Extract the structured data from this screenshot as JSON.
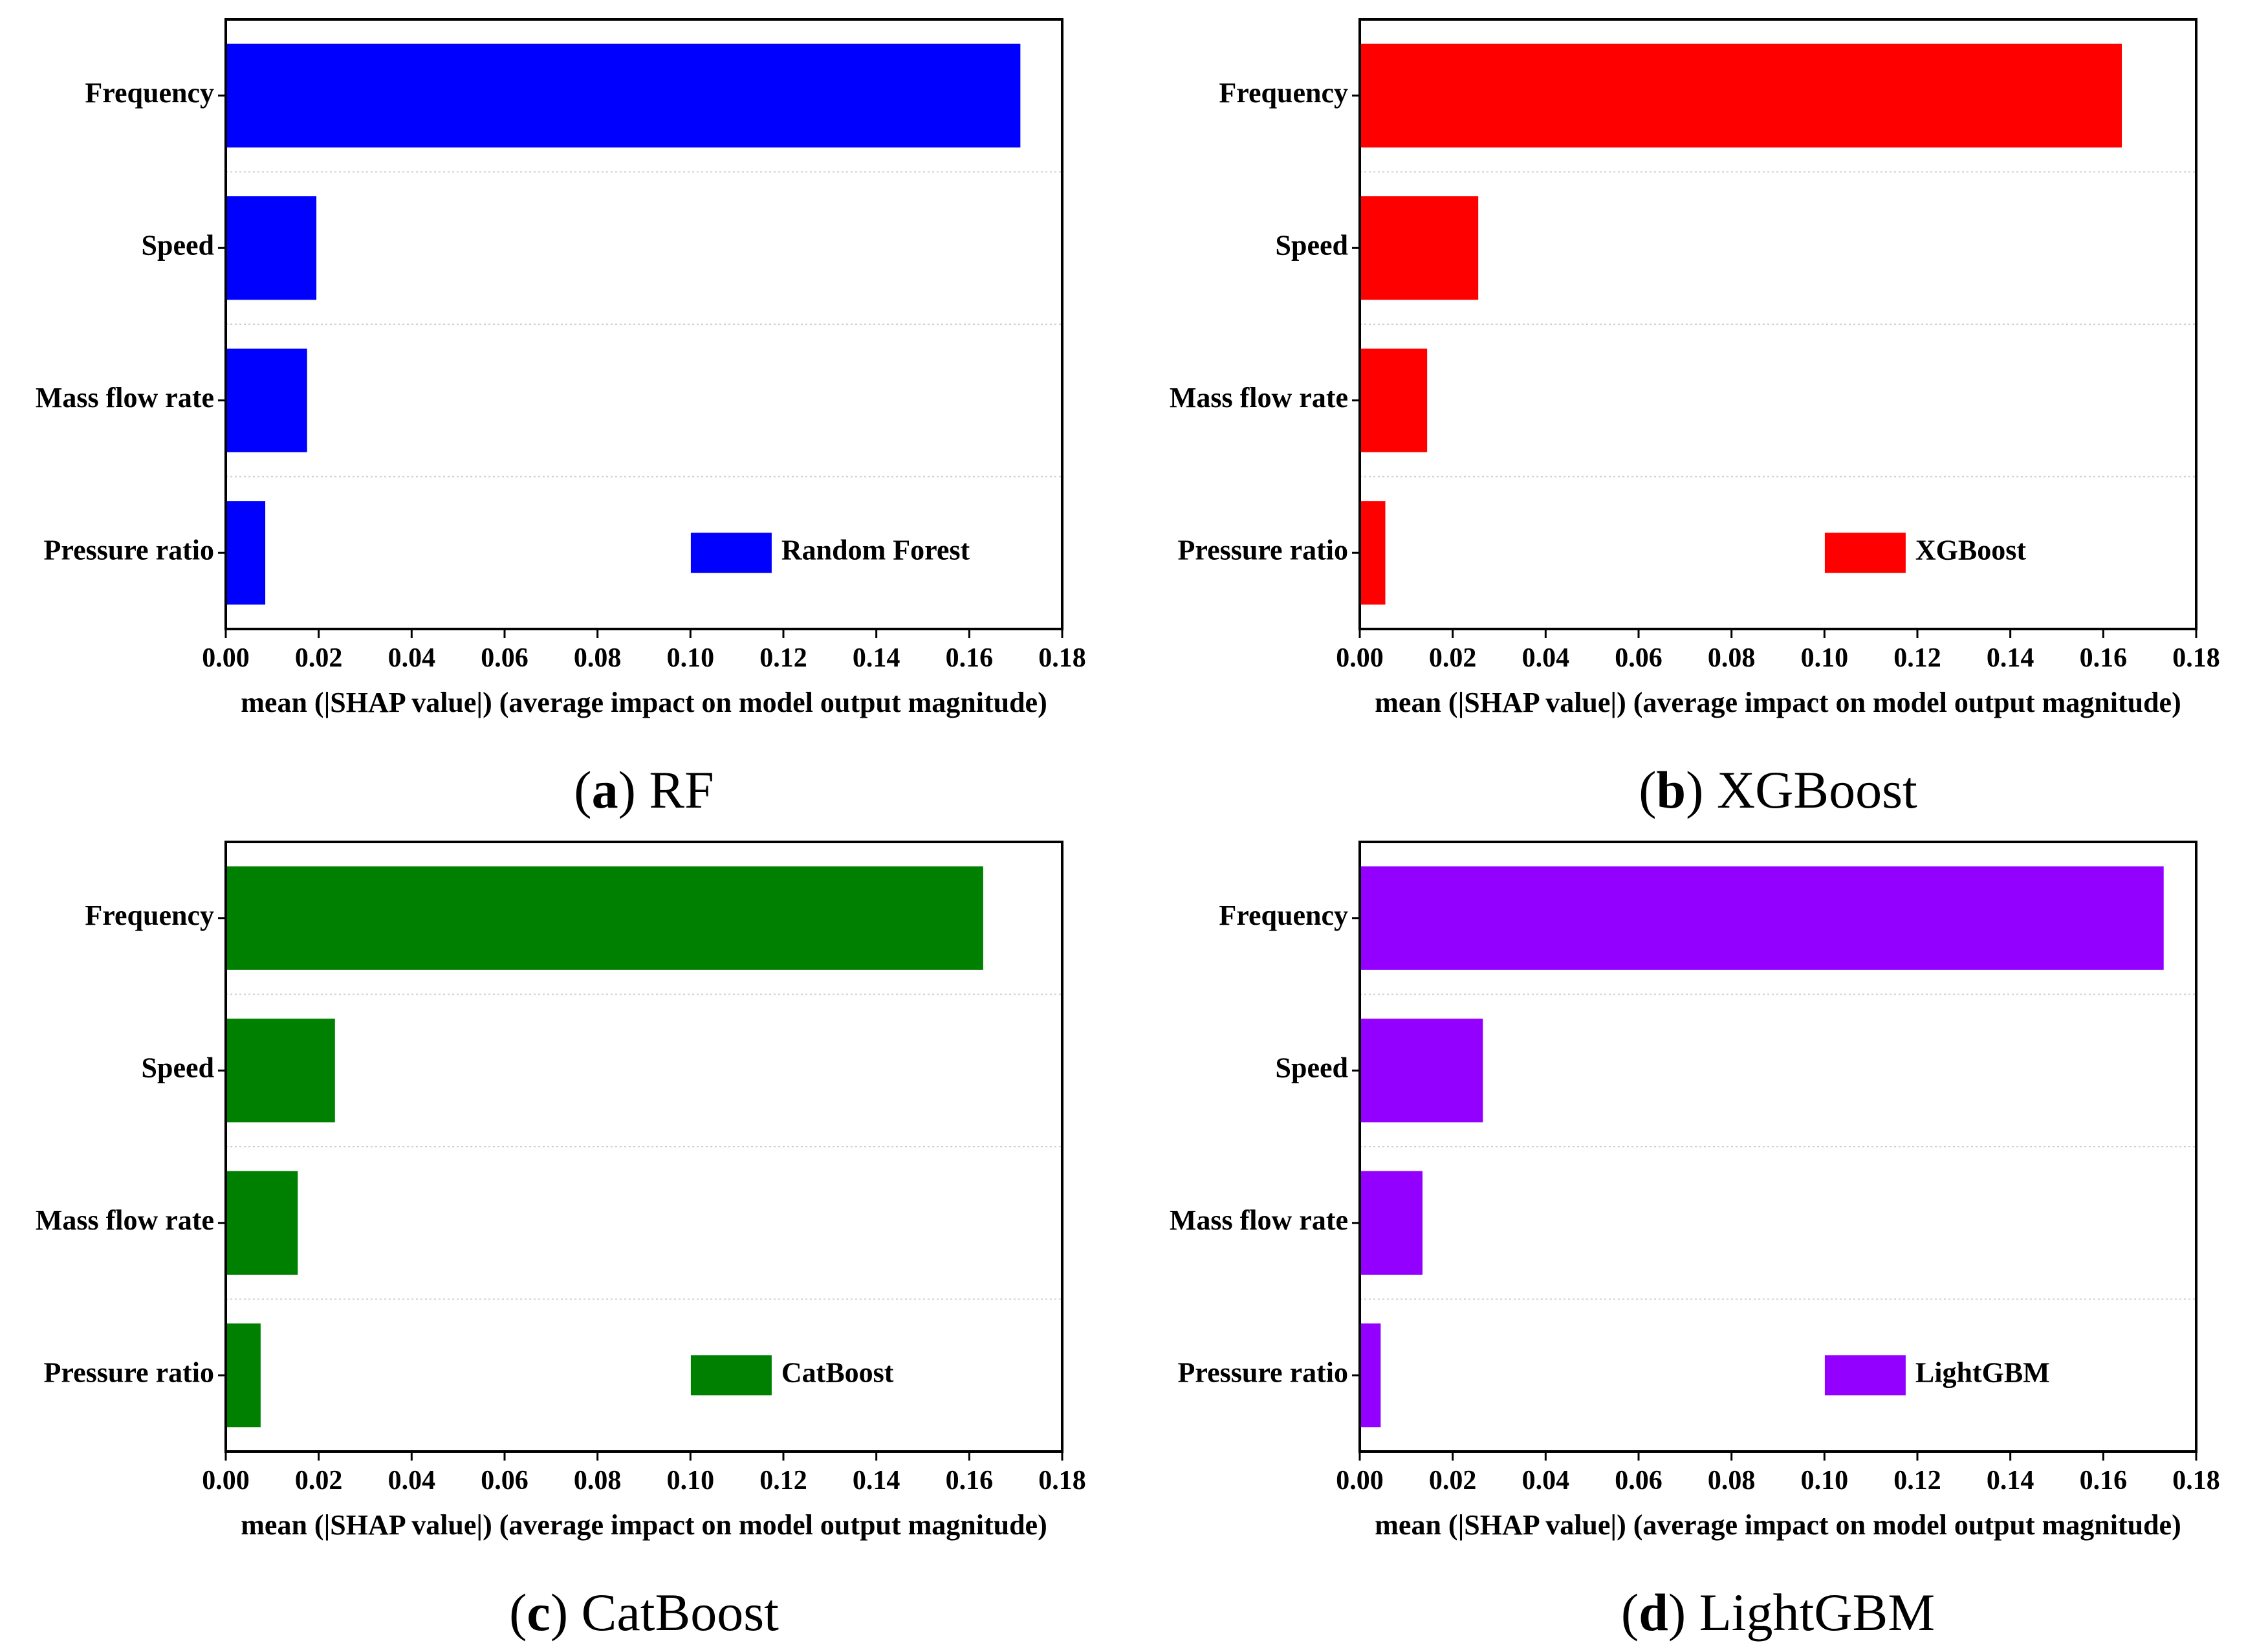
{
  "chart_data": [
    {
      "type": "bar",
      "orientation": "horizontal",
      "caption": {
        "letter": "a",
        "text": "RF"
      },
      "categories": [
        "Frequency",
        "Speed",
        "Mass flow rate",
        "Pressure ratio"
      ],
      "series": [
        {
          "name": "Random Forest",
          "color": "#0000FF",
          "values": [
            0.171,
            0.0195,
            0.0175,
            0.0085
          ]
        }
      ],
      "xlabel": "mean (|SHAP value|) (average impact on model output magnitude)",
      "xlim": [
        0,
        0.18
      ],
      "xticks": [
        "0.00",
        "0.02",
        "0.04",
        "0.06",
        "0.08",
        "0.10",
        "0.12",
        "0.14",
        "0.16",
        "0.18"
      ],
      "grid": "horizontal dotted separators",
      "legend_position": "bottom-right"
    },
    {
      "type": "bar",
      "orientation": "horizontal",
      "caption": {
        "letter": "b",
        "text": "XGBoost"
      },
      "categories": [
        "Frequency",
        "Speed",
        "Mass flow rate",
        "Pressure ratio"
      ],
      "series": [
        {
          "name": "XGBoost",
          "color": "#FF0000",
          "values": [
            0.164,
            0.0255,
            0.0145,
            0.0055
          ]
        }
      ],
      "xlabel": "mean (|SHAP value|) (average impact on model output magnitude)",
      "xlim": [
        0,
        0.18
      ],
      "xticks": [
        "0.00",
        "0.02",
        "0.04",
        "0.06",
        "0.08",
        "0.10",
        "0.12",
        "0.14",
        "0.16",
        "0.18"
      ],
      "grid": "horizontal dotted separators",
      "legend_position": "bottom-right"
    },
    {
      "type": "bar",
      "orientation": "horizontal",
      "caption": {
        "letter": "c",
        "text": "CatBoost"
      },
      "categories": [
        "Frequency",
        "Speed",
        "Mass flow rate",
        "Pressure ratio"
      ],
      "series": [
        {
          "name": "CatBoost",
          "color": "#008000",
          "values": [
            0.163,
            0.0235,
            0.0155,
            0.0075
          ]
        }
      ],
      "xlabel": "mean (|SHAP value|) (average impact on model output magnitude)",
      "xlim": [
        0,
        0.18
      ],
      "xticks": [
        "0.00",
        "0.02",
        "0.04",
        "0.06",
        "0.08",
        "0.10",
        "0.12",
        "0.14",
        "0.16",
        "0.18"
      ],
      "grid": "horizontal dotted separators",
      "legend_position": "bottom-right"
    },
    {
      "type": "bar",
      "orientation": "horizontal",
      "caption": {
        "letter": "d",
        "text": "LightGBM"
      },
      "categories": [
        "Frequency",
        "Speed",
        "Mass flow rate",
        "Pressure ratio"
      ],
      "series": [
        {
          "name": "LightGBM",
          "color": "#9400FF",
          "values": [
            0.173,
            0.0265,
            0.0135,
            0.0045
          ]
        }
      ],
      "xlabel": "mean (|SHAP value|) (average impact on model output magnitude)",
      "xlim": [
        0,
        0.18
      ],
      "xticks": [
        "0.00",
        "0.02",
        "0.04",
        "0.06",
        "0.08",
        "0.10",
        "0.12",
        "0.14",
        "0.16",
        "0.18"
      ],
      "grid": "horizontal dotted separators",
      "legend_position": "bottom-right"
    }
  ]
}
